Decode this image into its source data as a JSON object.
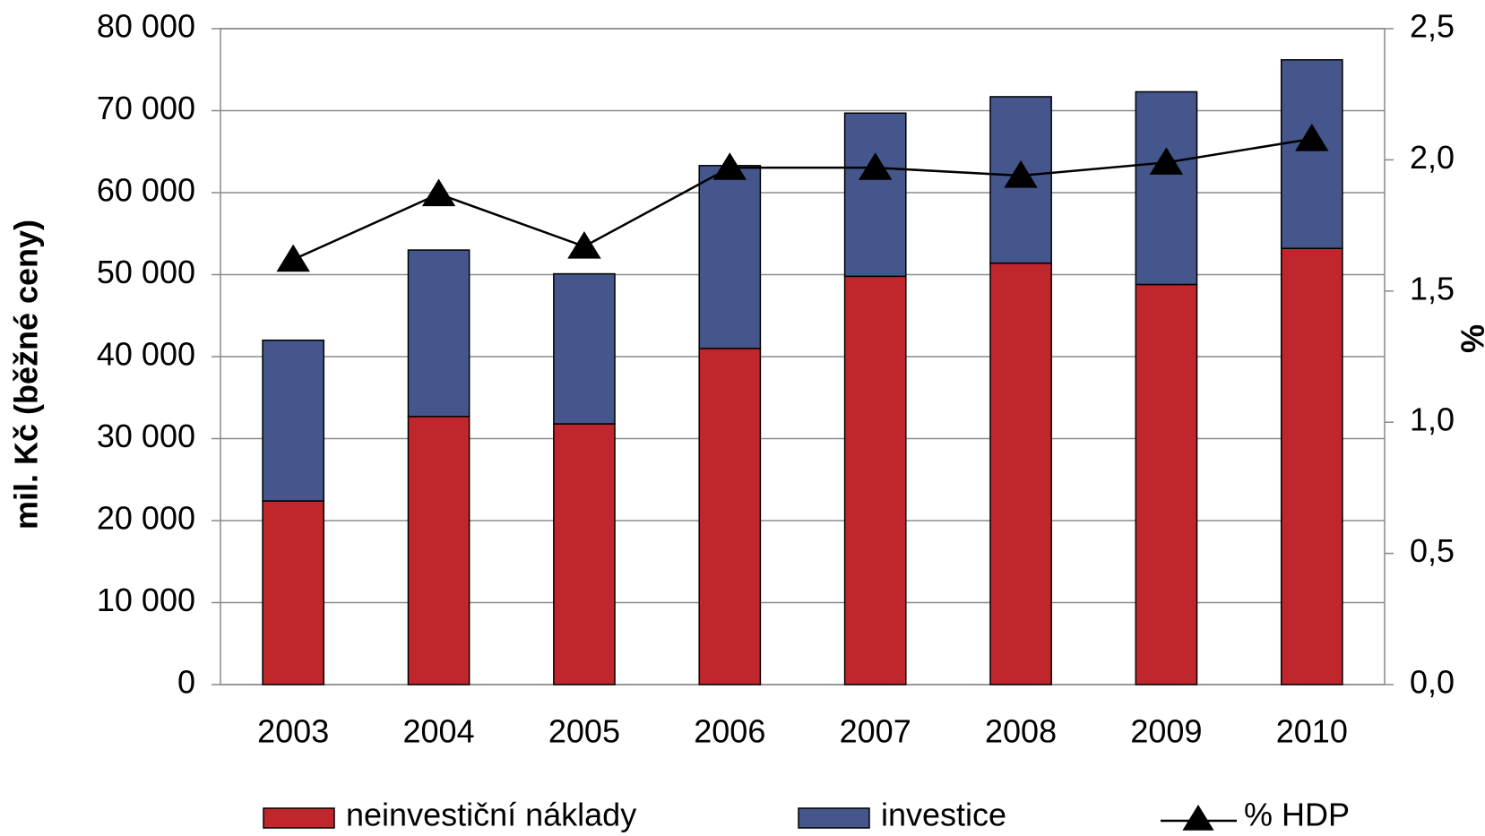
{
  "chart_data": {
    "type": "bar",
    "y_label": "mil. Kč (běžné ceny)",
    "y2_label": "%",
    "categories": [
      "2003",
      "2004",
      "2005",
      "2006",
      "2007",
      "2008",
      "2009",
      "2010"
    ],
    "stacked": true,
    "series": [
      {
        "name": "neinvestiční náklady",
        "color": "#c0272d",
        "values": [
          22400,
          32700,
          31800,
          41000,
          49800,
          51400,
          48800,
          53200
        ]
      },
      {
        "name": "investice",
        "color": "#45568c",
        "values": [
          19600,
          20300,
          18300,
          22300,
          19900,
          20300,
          23500,
          23000
        ]
      },
      {
        "name": "% HDP",
        "type": "line",
        "axis": "y2",
        "color": "#000000",
        "marker": "triangle",
        "values": [
          1.62,
          1.87,
          1.67,
          1.97,
          1.97,
          1.94,
          1.99,
          2.08
        ]
      }
    ],
    "ylim": [
      0,
      80000
    ],
    "yticks": [
      0,
      {
        "value": 10000,
        "label": "10 000"
      },
      {
        "value": 20000,
        "label": "20 000"
      },
      {
        "value": 30000,
        "label": "30 000"
      },
      {
        "value": 40000,
        "label": "40 000"
      },
      {
        "value": 50000,
        "label": "50 000"
      },
      {
        "value": 60000,
        "label": "60 000"
      },
      {
        "value": 70000,
        "label": "70 000"
      },
      {
        "value": 80000,
        "label": "80 000"
      }
    ],
    "y2lim": [
      0,
      2.5
    ],
    "y2ticks": [
      {
        "value": 0,
        "label": "0,0"
      },
      {
        "value": 0.5,
        "label": "0,5"
      },
      {
        "value": 1,
        "label": "1,0"
      },
      {
        "value": 1.5,
        "label": "1,5"
      },
      {
        "value": 2,
        "label": "2,0"
      },
      {
        "value": 2.5,
        "label": "2,5"
      }
    ],
    "grid": true,
    "legend": "bottom"
  }
}
